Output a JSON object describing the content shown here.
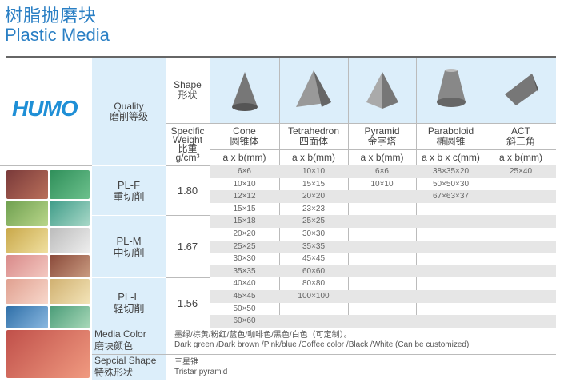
{
  "title_cn": "树脂抛磨块",
  "title_en": "Plastic Media",
  "logo_text": "HUMO",
  "header": {
    "quality_en": "Quality",
    "quality_cn": "磨削等级",
    "shape_en": "Shape",
    "shape_cn": "形状",
    "sw_en1": "Specific",
    "sw_en2": "Weight",
    "sw_cn": "比重",
    "sw_unit": "g/cm³"
  },
  "shapes": [
    {
      "en": "Cone",
      "cn": "圆锥体",
      "unit": "a x b(mm)",
      "icon": "cone-icon"
    },
    {
      "en": "Tetrahedron",
      "cn": "四面体",
      "unit": "a x b(mm)",
      "icon": "tetrahedron-icon"
    },
    {
      "en": "Pyramid",
      "cn": "金字塔",
      "unit": "a x b(mm)",
      "icon": "pyramid-icon"
    },
    {
      "en": "Paraboloid",
      "cn": "椭圆锥",
      "unit": "a x b x c(mm)",
      "icon": "paraboloid-icon"
    },
    {
      "en": "ACT",
      "cn": "斜三角",
      "unit": "a x b(mm)",
      "icon": "act-icon"
    }
  ],
  "grades": [
    {
      "code": "PL-F",
      "cn": "重切削",
      "sw": "1.80"
    },
    {
      "code": "PL-M",
      "cn": "中切削",
      "sw": "1.67"
    },
    {
      "code": "PL-L",
      "cn": "轻切削",
      "sw": "1.56"
    }
  ],
  "rows": [
    [
      "6×6",
      "10×10",
      "6×6",
      "38×35×20",
      "25×40"
    ],
    [
      "10×10",
      "15×15",
      "10×10",
      "50×50×30",
      ""
    ],
    [
      "12×12",
      "20×20",
      "",
      "67×63×37",
      ""
    ],
    [
      "15×15",
      "23×23",
      "",
      "",
      ""
    ],
    [
      "15×18",
      "25×25",
      "",
      "",
      ""
    ],
    [
      "20×20",
      "30×30",
      "",
      "",
      ""
    ],
    [
      "25×25",
      "35×35",
      "",
      "",
      ""
    ],
    [
      "30×30",
      "45×45",
      "",
      "",
      ""
    ],
    [
      "35×35",
      "60×60",
      "",
      "",
      ""
    ],
    [
      "40×40",
      "80×80",
      "",
      "",
      ""
    ],
    [
      "45×45",
      "100×100",
      "",
      "",
      ""
    ],
    [
      "50×50",
      "",
      "",
      "",
      ""
    ],
    [
      "60×60",
      "",
      "",
      "",
      ""
    ]
  ],
  "media_color": {
    "label_en": "Media Color",
    "label_cn": "磨块颜色",
    "cn": "墨绿/棕黄/粉红/蓝色/咖啡色/黑色/白色（可定制）。",
    "en": "Dark green /Dark brown /Pink/blue /Coffee color /Black /White (Can be customized)"
  },
  "special_shape": {
    "label_en": "Sepcial Shape",
    "label_cn": "特殊形状",
    "cn": "三星锥",
    "en": "Tristar pyramid"
  },
  "colors": {
    "accent": "#2a7fc4",
    "header_blue": "#dceefa",
    "stripe": "#e6e6e6"
  }
}
